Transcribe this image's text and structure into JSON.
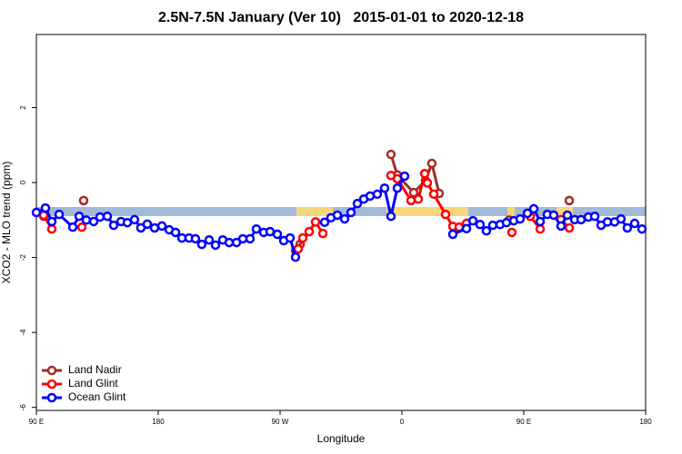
{
  "chart_data": {
    "type": "line",
    "title": "2.5N-7.5N January (Ver 10)   2015-01-01 to 2020-12-18",
    "xlabel": "Longitude",
    "ylabel": "XCO2 - MLO trend (ppm)",
    "xlim": [
      90,
      540
    ],
    "ylim": [
      -6.08,
      3.95
    ],
    "xticks": [
      {
        "value": 90,
        "label": "90 E"
      },
      180,
      {
        "value": 270,
        "label": "90 W"
      },
      {
        "value": 360,
        "label": "0"
      },
      {
        "value": 450,
        "label": "90 E"
      },
      {
        "value": 540,
        "label": "180"
      }
    ],
    "yticks": [
      2,
      0,
      -2,
      -4,
      -6
    ],
    "legend": "bottom-left",
    "series": [
      {
        "name": "Land Nadir",
        "color": "#a52a2a",
        "x": [
          95.4,
          110,
          124.9,
          200,
          281.4,
          284.8,
          320,
          351.9,
          356.6,
          368.7,
          377.4,
          382.1,
          387.5,
          420,
          439.2,
          460,
          483.6
        ],
        "values": [
          -0.9,
          null,
          -0.48,
          null,
          -1.82,
          -1.65,
          null,
          0.75,
          0.2,
          -0.27,
          0.05,
          0.51,
          -0.29,
          null,
          -1.0,
          null,
          -0.48
        ]
      },
      {
        "name": "Land Glint",
        "color": "#ff0000",
        "x": [
          95.4,
          101.4,
          110,
          123.6,
          200,
          283.4,
          286.8,
          291.5,
          296.2,
          301.6,
          320,
          351.9,
          356.6,
          366.7,
          372.1,
          376.8,
          378.8,
          383.5,
          392.2,
          397.6,
          402.3,
          407.7,
          420,
          441.2,
          450,
          454.7,
          462.1,
          470,
          477.5,
          483.6
        ],
        "values": [
          -0.87,
          -1.24,
          null,
          -1.19,
          null,
          -1.77,
          -1.48,
          -1.31,
          -1.05,
          -1.36,
          null,
          0.19,
          0.1,
          -0.48,
          -0.44,
          0.24,
          -0.01,
          -0.31,
          -0.85,
          -1.17,
          -1.19,
          -1.09,
          null,
          -1.33,
          null,
          -0.9,
          -1.24,
          null,
          -0.99,
          -1.21
        ]
      },
      {
        "name": "Ocean Glint",
        "color": "#0000ff",
        "x": [
          90,
          96.7,
          101.4,
          106.8,
          116.9,
          121.6,
          126.9,
          132.3,
          137,
          142.4,
          147.1,
          152.5,
          157.2,
          162.5,
          167.2,
          171.9,
          177.3,
          182.7,
          188.1,
          192.8,
          197.5,
          202.8,
          207.5,
          212.2,
          217.6,
          222.3,
          227.7,
          232.4,
          237.8,
          242.5,
          247.8,
          252.5,
          257.9,
          262.6,
          268,
          272.7,
          277.4,
          281.4,
          300,
          302.9,
          307.6,
          312.3,
          317.7,
          322.4,
          327.1,
          331.8,
          336.5,
          341.8,
          347.2,
          351.9,
          356.6,
          362,
          380,
          397.6,
          407.7,
          412.4,
          417.7,
          422.4,
          427.1,
          432.5,
          437.2,
          442.6,
          447.3,
          452.7,
          457.4,
          462.1,
          467.4,
          472.1,
          477.5,
          482.2,
          487.6,
          492.3,
          497.7,
          502.4,
          507.1,
          511.8,
          517.1,
          521.8,
          526.5,
          531.9,
          537.3
        ],
        "values": [
          -0.8,
          -0.68,
          -1.04,
          -0.85,
          -1.19,
          -0.9,
          -1.0,
          -1.04,
          -0.92,
          -0.9,
          -1.14,
          -1.04,
          -1.07,
          -0.99,
          -1.21,
          -1.11,
          -1.21,
          -1.16,
          -1.26,
          -1.33,
          -1.48,
          -1.48,
          -1.5,
          -1.65,
          -1.53,
          -1.67,
          -1.53,
          -1.6,
          -1.6,
          -1.5,
          -1.5,
          -1.24,
          -1.33,
          -1.31,
          -1.38,
          -1.55,
          -1.48,
          -1.99,
          null,
          -1.06,
          -0.94,
          -0.87,
          -0.97,
          -0.8,
          -0.56,
          -0.44,
          -0.36,
          -0.31,
          -0.15,
          -0.9,
          -0.15,
          0.17,
          null,
          -1.38,
          -1.23,
          -1.02,
          -1.12,
          -1.29,
          -1.14,
          -1.12,
          -1.07,
          -1.02,
          -0.97,
          -0.82,
          -0.7,
          -1.04,
          -0.85,
          -0.87,
          -1.16,
          -0.87,
          -0.99,
          -0.99,
          -0.92,
          -0.9,
          -1.14,
          -1.05,
          -1.05,
          -0.97,
          -1.21,
          -1.09,
          -1.24
        ]
      }
    ]
  }
}
